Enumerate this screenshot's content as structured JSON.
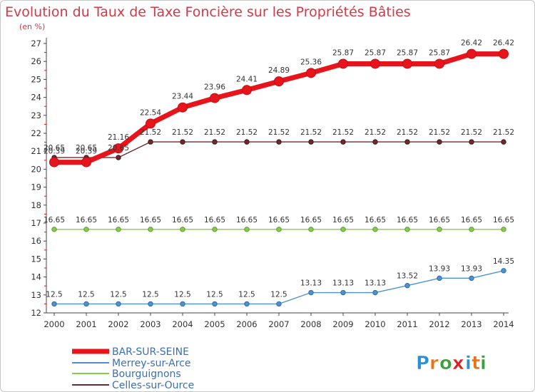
{
  "chart_data": {
    "type": "line",
    "title": "Evolution du Taux de Taxe Foncière sur les Propriétés Bâties",
    "ylabel": "(en %)",
    "xlabel": "",
    "ylim": [
      12,
      27
    ],
    "yticks": [
      "12",
      "13",
      "14",
      "15",
      "16",
      "17",
      "18",
      "19",
      "20",
      "21",
      "22",
      "23",
      "24",
      "25",
      "26",
      "27"
    ],
    "categories": [
      "2000",
      "2001",
      "2002",
      "2003",
      "2004",
      "2005",
      "2006",
      "2007",
      "2008",
      "2009",
      "2010",
      "2011",
      "2012",
      "2013",
      "2014"
    ],
    "grid": false,
    "legend_position": "bottom-left",
    "series": [
      {
        "name": "BAR-SUR-SEINE",
        "color": "#e8141c",
        "values": [
          20.39,
          20.39,
          21.16,
          22.54,
          23.44,
          23.96,
          24.41,
          24.89,
          25.36,
          25.87,
          25.87,
          25.87,
          25.87,
          26.42,
          26.42
        ],
        "labels": [
          "20.39",
          "20.39",
          "21.16",
          "22.54",
          "23.44",
          "23.96",
          "24.41",
          "24.89",
          "25.36",
          "25.87",
          "25.87",
          "25.87",
          "25.87",
          "26.42",
          "26.42"
        ]
      },
      {
        "name": "Merrey-sur-Arce",
        "color": "#4e91cf",
        "values": [
          12.5,
          12.5,
          12.5,
          12.5,
          12.5,
          12.5,
          12.5,
          12.5,
          13.13,
          13.13,
          13.13,
          13.52,
          13.93,
          13.93,
          14.35
        ],
        "labels": [
          "12.5",
          "12.5",
          "12.5",
          "12.5",
          "12.5",
          "12.5",
          "12.5",
          "12.5",
          "13.13",
          "13.13",
          "13.13",
          "13.52",
          "13.93",
          "13.93",
          "14.35"
        ]
      },
      {
        "name": "Bourguignons",
        "color": "#86cc4a",
        "values": [
          16.65,
          16.65,
          16.65,
          16.65,
          16.65,
          16.65,
          16.65,
          16.65,
          16.65,
          16.65,
          16.65,
          16.65,
          16.65,
          16.65,
          16.65
        ],
        "labels": [
          "16.65",
          "16.65",
          "16.65",
          "16.65",
          "16.65",
          "16.65",
          "16.65",
          "16.65",
          "16.65",
          "16.65",
          "16.65",
          "16.65",
          "16.65",
          "16.65",
          "16.65"
        ]
      },
      {
        "name": "Celles-sur-Ource",
        "color": "#6e2a2e",
        "values": [
          20.65,
          20.65,
          20.65,
          21.52,
          21.52,
          21.52,
          21.52,
          21.52,
          21.52,
          21.52,
          21.52,
          21.52,
          21.52,
          21.52,
          21.52
        ],
        "labels": [
          "20.65",
          "20.65",
          "20.65",
          "21.52",
          "21.52",
          "21.52",
          "21.52",
          "21.52",
          "21.52",
          "21.52",
          "21.52",
          "21.52",
          "21.52",
          "21.52",
          "21.52"
        ]
      }
    ]
  },
  "logo": {
    "letters": [
      "P",
      "r",
      "o",
      "x",
      "i",
      "t",
      "i"
    ],
    "colors": [
      "#2a8fd8",
      "#e8741a",
      "#3aa03a",
      "#e02020",
      "#2a8fd8",
      "#e8741a",
      "#3aa03a"
    ]
  }
}
